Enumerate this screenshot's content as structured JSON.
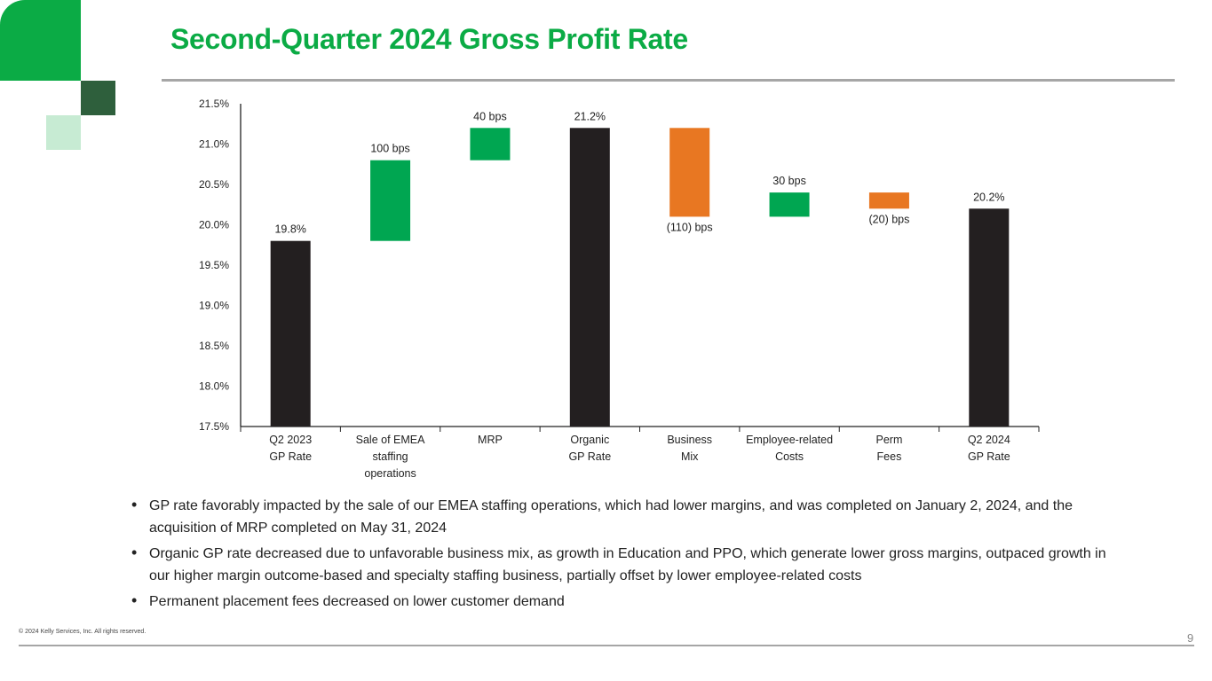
{
  "title": "Second-Quarter 2024 Gross Profit Rate",
  "colors": {
    "brand_green": "#0bab45",
    "dark_green": "#2e5f3c",
    "light_green": "#c7ebd3",
    "total_bar": "#231f20",
    "increase_bar": "#00a651",
    "decrease_bar": "#e87722"
  },
  "chart_data": {
    "type": "bar",
    "subtype": "waterfall",
    "title": "",
    "xlabel": "",
    "ylabel": "",
    "ylim": [
      17.5,
      21.5
    ],
    "yticks": [
      17.5,
      18.0,
      18.5,
      19.0,
      19.5,
      20.0,
      20.5,
      21.0,
      21.5
    ],
    "ytick_labels": [
      "17.5%",
      "18.0%",
      "18.5%",
      "19.0%",
      "19.5%",
      "20.0%",
      "20.5%",
      "21.0%",
      "21.5%"
    ],
    "grid": false,
    "categories": [
      [
        "Q2 2023",
        "GP Rate"
      ],
      [
        "Sale of EMEA",
        "staffing",
        "operations"
      ],
      [
        "MRP"
      ],
      [
        "Organic",
        "GP Rate"
      ],
      [
        "Business",
        "Mix"
      ],
      [
        "Employee-related",
        "Costs"
      ],
      [
        "Perm",
        "Fees"
      ],
      [
        "Q2 2024",
        "GP Rate"
      ]
    ],
    "bars": [
      {
        "kind": "total",
        "value": 19.8,
        "label": "19.8%"
      },
      {
        "kind": "increase",
        "start": 19.8,
        "end": 20.8,
        "delta_bps": 100,
        "label": "100  bps"
      },
      {
        "kind": "increase",
        "start": 20.8,
        "end": 21.2,
        "delta_bps": 40,
        "label": "40  bps"
      },
      {
        "kind": "total",
        "value": 21.2,
        "label": "21.2%"
      },
      {
        "kind": "decrease",
        "start": 21.2,
        "end": 20.1,
        "delta_bps": -110,
        "label": "(110) bps"
      },
      {
        "kind": "increase",
        "start": 20.1,
        "end": 20.4,
        "delta_bps": 30,
        "label": "30  bps"
      },
      {
        "kind": "decrease",
        "start": 20.4,
        "end": 20.2,
        "delta_bps": -20,
        "label": "(20) bps"
      },
      {
        "kind": "total",
        "value": 20.2,
        "label": "20.2%"
      }
    ]
  },
  "bullets": [
    "GP rate favorably impacted by the sale of our EMEA staffing operations, which had lower margins, and was completed on January 2, 2024, and the acquisition of MRP completed on May 31, 2024",
    "Organic GP rate decreased due to unfavorable business mix, as growth in Education and PPO, which generate lower gross margins, outpaced growth in our higher margin outcome-based and specialty staffing business, partially offset by lower employee-related costs",
    "Permanent placement fees decreased on lower customer demand"
  ],
  "footer": {
    "copyright": "© 2024 Kelly Services, Inc. All rights reserved.",
    "page_number": "9"
  }
}
